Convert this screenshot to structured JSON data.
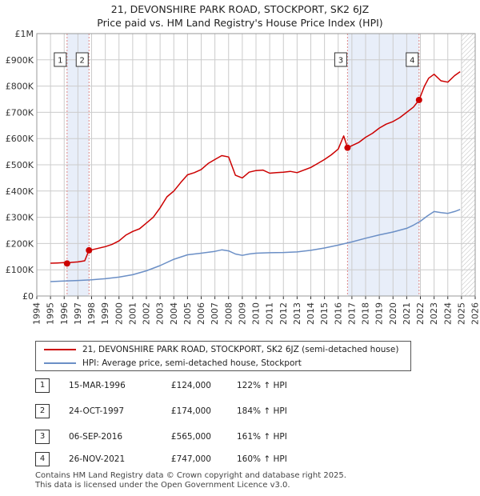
{
  "title": {
    "line1": "21, DEVONSHIRE PARK ROAD, STOCKPORT, SK2 6JZ",
    "line2": "Price paid vs. HM Land Registry's House Price Index (HPI)"
  },
  "colors": {
    "property": "#cc0000",
    "hpi": "#6b8fc6",
    "shade": "#e8eef9",
    "grid": "#cccccc",
    "marker_line": "#dd8888"
  },
  "chart_data": {
    "type": "line",
    "xlim": [
      1994,
      2026
    ],
    "ylim": [
      0,
      1000000
    ],
    "x_ticks": [
      "1994",
      "1995",
      "1996",
      "1997",
      "1998",
      "1999",
      "2000",
      "2001",
      "2002",
      "2003",
      "2004",
      "2005",
      "2006",
      "2007",
      "2008",
      "2009",
      "2010",
      "2011",
      "2012",
      "2013",
      "2014",
      "2015",
      "2016",
      "2017",
      "2018",
      "2019",
      "2020",
      "2021",
      "2022",
      "2023",
      "2024",
      "2025",
      "2026"
    ],
    "y_ticks": [
      {
        "value": 0,
        "label": "£0"
      },
      {
        "value": 100000,
        "label": "£100K"
      },
      {
        "value": 200000,
        "label": "£200K"
      },
      {
        "value": 300000,
        "label": "£300K"
      },
      {
        "value": 400000,
        "label": "£400K"
      },
      {
        "value": 500000,
        "label": "£500K"
      },
      {
        "value": 600000,
        "label": "£600K"
      },
      {
        "value": 700000,
        "label": "£700K"
      },
      {
        "value": 800000,
        "label": "£800K"
      },
      {
        "value": 900000,
        "label": "£900K"
      },
      {
        "value": 1000000,
        "label": "£1M"
      }
    ],
    "shaded_ranges": [
      [
        1996.2,
        1997.8
      ],
      [
        2016.7,
        2021.9
      ]
    ],
    "hatched_range": [
      2025.0,
      2026.0
    ],
    "sales": [
      {
        "label": "1",
        "x": 1996.21,
        "y": 124000
      },
      {
        "label": "2",
        "x": 1997.81,
        "y": 174000
      },
      {
        "label": "3",
        "x": 2016.68,
        "y": 565000
      },
      {
        "label": "4",
        "x": 2021.9,
        "y": 747000
      }
    ],
    "series": [
      {
        "name": "21, DEVONSHIRE PARK ROAD, STOCKPORT, SK2 6JZ (semi-detached house)",
        "x": [
          1995.0,
          1995.5,
          1996.0,
          1996.21,
          1996.5,
          1997.0,
          1997.5,
          1997.81,
          1998.0,
          1998.5,
          1999.0,
          1999.5,
          2000.0,
          2000.5,
          2001.0,
          2001.5,
          2002.0,
          2002.5,
          2003.0,
          2003.5,
          2004.0,
          2004.5,
          2005.0,
          2005.5,
          2006.0,
          2006.5,
          2007.0,
          2007.5,
          2008.0,
          2008.5,
          2009.0,
          2009.5,
          2010.0,
          2010.5,
          2011.0,
          2011.5,
          2012.0,
          2012.5,
          2013.0,
          2013.5,
          2014.0,
          2014.5,
          2015.0,
          2015.5,
          2016.0,
          2016.4,
          2016.68,
          2017.0,
          2017.5,
          2018.0,
          2018.5,
          2019.0,
          2019.5,
          2020.0,
          2020.5,
          2021.0,
          2021.5,
          2021.9,
          2022.3,
          2022.6,
          2023.0,
          2023.5,
          2024.0,
          2024.5,
          2024.9
        ],
        "y": [
          125000,
          126000,
          127000,
          124000,
          128000,
          130000,
          134000,
          174000,
          176000,
          182000,
          188000,
          197000,
          210000,
          232000,
          246000,
          256000,
          278000,
          300000,
          336000,
          378000,
          400000,
          432000,
          462000,
          470000,
          482000,
          505000,
          520000,
          535000,
          530000,
          460000,
          450000,
          472000,
          478000,
          480000,
          468000,
          470000,
          472000,
          475000,
          470000,
          480000,
          490000,
          505000,
          520000,
          538000,
          560000,
          610000,
          565000,
          573000,
          585000,
          605000,
          620000,
          640000,
          655000,
          665000,
          680000,
          700000,
          720000,
          747000,
          800000,
          830000,
          845000,
          820000,
          815000,
          840000,
          855000
        ]
      },
      {
        "name": "HPI: Average price, semi-detached house, Stockport",
        "x": [
          1995.0,
          1996.0,
          1997.0,
          1998.0,
          1999.0,
          2000.0,
          2001.0,
          2002.0,
          2003.0,
          2004.0,
          2005.0,
          2006.0,
          2007.0,
          2007.5,
          2008.0,
          2008.5,
          2009.0,
          2009.5,
          2010.0,
          2011.0,
          2012.0,
          2013.0,
          2014.0,
          2015.0,
          2016.0,
          2017.0,
          2018.0,
          2019.0,
          2020.0,
          2021.0,
          2021.5,
          2022.0,
          2022.5,
          2023.0,
          2023.5,
          2024.0,
          2024.5,
          2024.9
        ],
        "y": [
          55000,
          57000,
          59000,
          62000,
          66000,
          72000,
          81000,
          96000,
          116000,
          140000,
          157000,
          163000,
          170000,
          176000,
          172000,
          160000,
          155000,
          160000,
          163000,
          165000,
          166000,
          168000,
          174000,
          183000,
          194000,
          206000,
          220000,
          233000,
          244000,
          258000,
          270000,
          285000,
          305000,
          322000,
          318000,
          315000,
          322000,
          330000
        ]
      }
    ]
  },
  "legend": {
    "property_label": "21, DEVONSHIRE PARK ROAD, STOCKPORT, SK2 6JZ (semi-detached house)",
    "hpi_label": "HPI: Average price, semi-detached house, Stockport"
  },
  "transactions": [
    {
      "num": "1",
      "date": "15-MAR-1996",
      "price": "£124,000",
      "hpi": "122% ↑ HPI"
    },
    {
      "num": "2",
      "date": "24-OCT-1997",
      "price": "£174,000",
      "hpi": "184% ↑ HPI"
    },
    {
      "num": "3",
      "date": "06-SEP-2016",
      "price": "£565,000",
      "hpi": "161% ↑ HPI"
    },
    {
      "num": "4",
      "date": "26-NOV-2021",
      "price": "£747,000",
      "hpi": "160% ↑ HPI"
    }
  ],
  "footer": {
    "line1": "Contains HM Land Registry data © Crown copyright and database right 2025.",
    "line2": "This data is licensed under the Open Government Licence v3.0."
  }
}
